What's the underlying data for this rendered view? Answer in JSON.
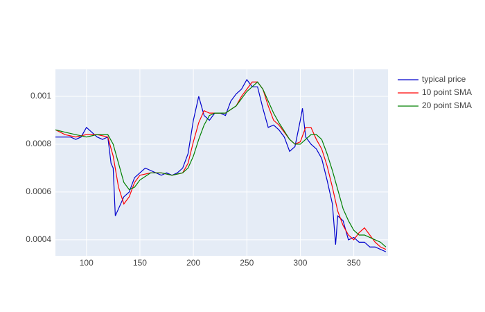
{
  "chart_data": {
    "type": "line",
    "xlim": [
      71,
      382
    ],
    "ylim": [
      0.000333,
      0.001113
    ],
    "xticks": [
      100,
      150,
      200,
      250,
      300,
      350
    ],
    "yticks": [
      0.0004,
      0.0006,
      0.0008,
      0.001
    ],
    "grid": true,
    "legend": "right",
    "series": [
      {
        "name": "typical price",
        "color": "#0000cc",
        "x": [
          71,
          75,
          80,
          85,
          90,
          95,
          100,
          105,
          110,
          115,
          120,
          123,
          125,
          127,
          130,
          135,
          140,
          145,
          150,
          155,
          160,
          165,
          170,
          175,
          180,
          185,
          190,
          195,
          200,
          205,
          210,
          215,
          220,
          225,
          230,
          235,
          240,
          245,
          250,
          255,
          260,
          265,
          270,
          275,
          280,
          285,
          290,
          295,
          300,
          302,
          305,
          310,
          315,
          320,
          325,
          330,
          333,
          335,
          340,
          345,
          350,
          355,
          360,
          365,
          370,
          375,
          380
        ],
        "values": [
          0.00083,
          0.00083,
          0.00083,
          0.00083,
          0.00082,
          0.00083,
          0.00087,
          0.00085,
          0.00083,
          0.00082,
          0.00083,
          0.00072,
          0.0007,
          0.0005,
          0.00053,
          0.00058,
          0.0006,
          0.00066,
          0.00068,
          0.0007,
          0.00069,
          0.00068,
          0.00067,
          0.00068,
          0.00067,
          0.00068,
          0.0007,
          0.00076,
          0.0009,
          0.001,
          0.00092,
          0.0009,
          0.00093,
          0.00093,
          0.00092,
          0.00098,
          0.00101,
          0.00103,
          0.00107,
          0.00104,
          0.00104,
          0.00095,
          0.00087,
          0.00088,
          0.00086,
          0.00083,
          0.00077,
          0.00079,
          0.0009,
          0.00095,
          0.00083,
          0.0008,
          0.00078,
          0.00074,
          0.00065,
          0.00055,
          0.00038,
          0.0005,
          0.00048,
          0.0004,
          0.00041,
          0.00039,
          0.00039,
          0.00037,
          0.00037,
          0.00036,
          0.00035
        ]
      },
      {
        "name": "10 point SMA",
        "color": "#ff0000",
        "x": [
          71,
          80,
          90,
          100,
          110,
          120,
          125,
          130,
          135,
          140,
          145,
          150,
          160,
          170,
          180,
          190,
          195,
          200,
          205,
          210,
          215,
          220,
          230,
          240,
          245,
          250,
          255,
          260,
          265,
          270,
          275,
          280,
          290,
          295,
          300,
          305,
          310,
          315,
          320,
          325,
          330,
          335,
          340,
          345,
          350,
          355,
          360,
          365,
          370,
          375,
          380
        ],
        "values": [
          0.00086,
          0.00084,
          0.00083,
          0.00084,
          0.00084,
          0.00083,
          0.00075,
          0.00062,
          0.00055,
          0.00058,
          0.00064,
          0.00067,
          0.00068,
          0.00068,
          0.00067,
          0.00068,
          0.00072,
          0.00081,
          0.00089,
          0.00094,
          0.00093,
          0.00093,
          0.00093,
          0.00096,
          0.001,
          0.00103,
          0.00106,
          0.00106,
          0.00103,
          0.00096,
          0.0009,
          0.00088,
          0.00082,
          0.0008,
          0.00081,
          0.00087,
          0.00087,
          0.00082,
          0.00078,
          0.00071,
          0.00062,
          0.00052,
          0.00046,
          0.00042,
          0.0004,
          0.00043,
          0.00045,
          0.00042,
          0.00039,
          0.00037,
          0.00036
        ]
      },
      {
        "name": "20 point SMA",
        "color": "#008000",
        "x": [
          71,
          80,
          90,
          100,
          110,
          120,
          125,
          130,
          135,
          140,
          145,
          150,
          160,
          170,
          180,
          190,
          195,
          200,
          205,
          210,
          215,
          220,
          230,
          240,
          245,
          250,
          255,
          260,
          265,
          270,
          275,
          280,
          290,
          295,
          300,
          305,
          310,
          315,
          320,
          325,
          330,
          335,
          340,
          345,
          350,
          355,
          360,
          365,
          370,
          375,
          380
        ],
        "values": [
          0.00086,
          0.00085,
          0.00084,
          0.00083,
          0.00084,
          0.00084,
          0.0008,
          0.00072,
          0.00064,
          0.00061,
          0.00062,
          0.00065,
          0.00068,
          0.00068,
          0.00067,
          0.00068,
          0.0007,
          0.00075,
          0.00082,
          0.00088,
          0.00092,
          0.00093,
          0.00093,
          0.00096,
          0.00099,
          0.00102,
          0.00104,
          0.00106,
          0.00103,
          0.00098,
          0.00093,
          0.00089,
          0.00082,
          0.0008,
          0.0008,
          0.00082,
          0.00084,
          0.00084,
          0.00082,
          0.00076,
          0.00069,
          0.00061,
          0.00053,
          0.00048,
          0.00044,
          0.00042,
          0.00042,
          0.00041,
          0.0004,
          0.00039,
          0.00037
        ]
      }
    ]
  }
}
